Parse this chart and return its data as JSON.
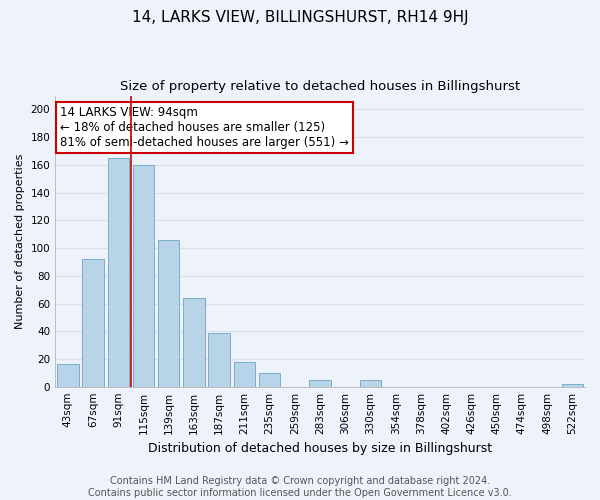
{
  "title": "14, LARKS VIEW, BILLINGSHURST, RH14 9HJ",
  "subtitle": "Size of property relative to detached houses in Billingshurst",
  "xlabel": "Distribution of detached houses by size in Billingshurst",
  "ylabel": "Number of detached properties",
  "bar_labels": [
    "43sqm",
    "67sqm",
    "91sqm",
    "115sqm",
    "139sqm",
    "163sqm",
    "187sqm",
    "211sqm",
    "235sqm",
    "259sqm",
    "283sqm",
    "306sqm",
    "330sqm",
    "354sqm",
    "378sqm",
    "402sqm",
    "426sqm",
    "450sqm",
    "474sqm",
    "498sqm",
    "522sqm"
  ],
  "bar_values": [
    16,
    92,
    165,
    160,
    106,
    64,
    39,
    18,
    10,
    0,
    5,
    0,
    5,
    0,
    0,
    0,
    0,
    0,
    0,
    0,
    2
  ],
  "bar_color": "#b8d4e8",
  "bar_edge_color": "#7aaec8",
  "vertical_line_x": 2.5,
  "vertical_line_color": "#cc0000",
  "annotation_line1": "14 LARKS VIEW: 94sqm",
  "annotation_line2": "← 18% of detached houses are smaller (125)",
  "annotation_line3": "81% of semi-detached houses are larger (551) →",
  "annotation_box_color": "#ffffff",
  "annotation_box_edgecolor": "#cc0000",
  "ylim": [
    0,
    210
  ],
  "yticks": [
    0,
    20,
    40,
    60,
    80,
    100,
    120,
    140,
    160,
    180,
    200
  ],
  "footer_text": "Contains HM Land Registry data © Crown copyright and database right 2024.\nContains public sector information licensed under the Open Government Licence v3.0.",
  "background_color": "#eef2fa",
  "grid_color": "#d8e0ee",
  "title_fontsize": 11,
  "subtitle_fontsize": 9.5,
  "xlabel_fontsize": 9,
  "ylabel_fontsize": 8,
  "tick_fontsize": 7.5,
  "annotation_fontsize": 8.5,
  "footer_fontsize": 7
}
